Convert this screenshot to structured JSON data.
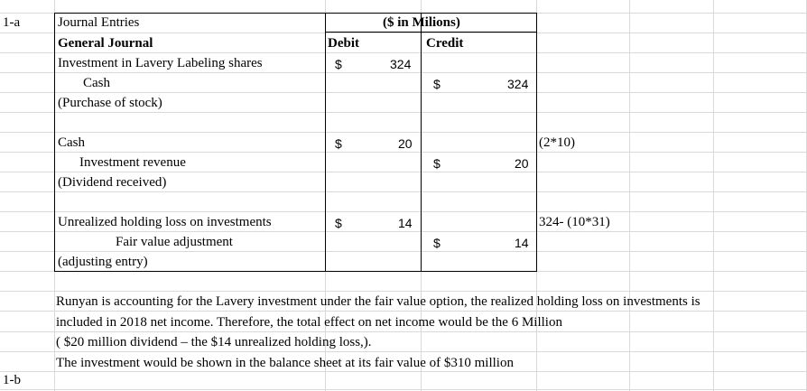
{
  "row_labels": {
    "part_a": "1-a",
    "part_b": "1-b"
  },
  "header": {
    "col_title": "Journal Entries",
    "units": "($ in Milions)",
    "subtitle": "General Journal",
    "debit": "Debit",
    "credit": "Credit"
  },
  "currency": "$",
  "entries": [
    {
      "debit_account": "Investment in Lavery Labeling shares",
      "credit_account": "Cash",
      "description": "(Purchase of stock)",
      "debit_amount": "324",
      "credit_amount": "324",
      "calc": ""
    },
    {
      "debit_account": "Cash",
      "credit_account": "Investment revenue",
      "description": "(Dividend received)",
      "debit_amount": "20",
      "credit_amount": "20",
      "calc": "(2*10)"
    },
    {
      "debit_account": "Unrealized holding loss on investments",
      "credit_account": "Fair value adjustment",
      "description": "(adjusting entry)",
      "debit_amount": "14",
      "credit_amount": "14",
      "calc": "324- (10*31)"
    }
  ],
  "notes": [
    "Runyan is accounting for the Lavery investment under the fair value option, the realized holding loss on investments is",
    "included in 2018 net income. Therefore, the total effect on net income would be the 6 Million",
    "( $20 million dividend – the $14 unrealized holding loss,).",
    "The investment would be shown in the balance sheet at its fair value of $310 million"
  ]
}
